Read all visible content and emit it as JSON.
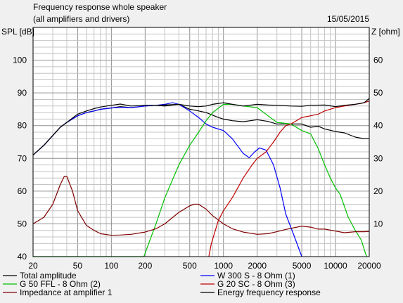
{
  "chart_data": {
    "type": "line",
    "title": "Frequency response whole speaker",
    "subtitle": "(all amplifiers and drivers)",
    "date": "15/05/2015",
    "ylabel_left": "SPL [dB]",
    "ylabel_right": "Z [ohm]",
    "x_scale": "log",
    "xlim": [
      20,
      20000
    ],
    "ylim_left": [
      40,
      110
    ],
    "ylim_right": [
      0,
      70
    ],
    "x_ticks": [
      20,
      50,
      100,
      200,
      500,
      1000,
      2000,
      5000,
      10000,
      20000
    ],
    "x_tick_labels": [
      "20",
      "50",
      "100",
      "200",
      "500",
      "1000",
      "2000",
      "5000",
      "10000",
      "20000"
    ],
    "y_ticks_left": [
      40,
      50,
      60,
      70,
      80,
      90,
      100
    ],
    "y_ticks_right": [
      10,
      20,
      30,
      40,
      50,
      60
    ],
    "grid": true,
    "legend_position": "bottom",
    "series": [
      {
        "name": "Total amplitude",
        "color": "#000000",
        "axis": "left",
        "points": [
          [
            20,
            71
          ],
          [
            25,
            74
          ],
          [
            30,
            77
          ],
          [
            35,
            79.5
          ],
          [
            40,
            81
          ],
          [
            50,
            83
          ],
          [
            60,
            84
          ],
          [
            70,
            84.5
          ],
          [
            80,
            85
          ],
          [
            100,
            85.4
          ],
          [
            120,
            85.8
          ],
          [
            150,
            85.5
          ],
          [
            200,
            86
          ],
          [
            250,
            86.2
          ],
          [
            300,
            86
          ],
          [
            350,
            86.3
          ],
          [
            400,
            86.5
          ],
          [
            500,
            85
          ],
          [
            600,
            84.5
          ],
          [
            700,
            84
          ],
          [
            800,
            83.2
          ],
          [
            900,
            82.5
          ],
          [
            1000,
            82
          ],
          [
            1200,
            81.5
          ],
          [
            1500,
            81.2
          ],
          [
            2000,
            81.8
          ],
          [
            2500,
            81.3
          ],
          [
            3000,
            80.5
          ],
          [
            4000,
            80.5
          ],
          [
            5000,
            80.5
          ],
          [
            6000,
            79.5
          ],
          [
            7000,
            79.8
          ],
          [
            8000,
            79
          ],
          [
            10000,
            78.2
          ],
          [
            12000,
            77.8
          ],
          [
            15000,
            76.5
          ],
          [
            18000,
            76
          ],
          [
            20000,
            76
          ]
        ]
      },
      {
        "name": "W 300 S - 8 Ohm (1)",
        "color": "#0000ff",
        "axis": "left",
        "points": [
          [
            20,
            71
          ],
          [
            25,
            74
          ],
          [
            30,
            77
          ],
          [
            35,
            79.5
          ],
          [
            40,
            81
          ],
          [
            50,
            83
          ],
          [
            60,
            84
          ],
          [
            70,
            84.5
          ],
          [
            80,
            85
          ],
          [
            100,
            85.4
          ],
          [
            120,
            85.6
          ],
          [
            150,
            85.5
          ],
          [
            200,
            86
          ],
          [
            250,
            86.2
          ],
          [
            300,
            86.5
          ],
          [
            350,
            87
          ],
          [
            400,
            86.5
          ],
          [
            500,
            84.5
          ],
          [
            600,
            82.5
          ],
          [
            700,
            80.5
          ],
          [
            800,
            79.5
          ],
          [
            1000,
            78.5
          ],
          [
            1200,
            76
          ],
          [
            1500,
            71.5
          ],
          [
            1700,
            70.2
          ],
          [
            1900,
            72
          ],
          [
            2100,
            73.2
          ],
          [
            2400,
            72.5
          ],
          [
            2800,
            68
          ],
          [
            3200,
            61
          ],
          [
            3600,
            53
          ],
          [
            4200,
            47
          ],
          [
            5000,
            40
          ]
        ]
      },
      {
        "name": "G 50 FFL - 8 Ohm (2)",
        "color": "#00c000",
        "axis": "left",
        "points": [
          [
            20,
            40
          ],
          [
            100,
            40
          ],
          [
            150,
            40
          ],
          [
            195,
            40
          ],
          [
            210,
            43
          ],
          [
            250,
            50
          ],
          [
            300,
            58
          ],
          [
            400,
            68
          ],
          [
            500,
            74
          ],
          [
            600,
            78
          ],
          [
            700,
            81.5
          ],
          [
            800,
            84
          ],
          [
            1000,
            86.5
          ],
          [
            1200,
            86.5
          ],
          [
            1500,
            86
          ],
          [
            2000,
            85.5
          ],
          [
            2500,
            83
          ],
          [
            3000,
            81
          ],
          [
            4000,
            80.5
          ],
          [
            5000,
            78.5
          ],
          [
            6000,
            77.5
          ],
          [
            7000,
            73
          ],
          [
            8000,
            68
          ],
          [
            9000,
            64
          ],
          [
            10000,
            61
          ],
          [
            11000,
            59
          ],
          [
            13000,
            52
          ],
          [
            15000,
            48
          ],
          [
            17000,
            45
          ],
          [
            18500,
            41
          ],
          [
            19000,
            40
          ]
        ]
      },
      {
        "name": "G 20 SC - 8 Ohm (3)",
        "color": "#c00000",
        "axis": "left",
        "points": [
          [
            740,
            40
          ],
          [
            780,
            44
          ],
          [
            900,
            51
          ],
          [
            1000,
            54
          ],
          [
            1200,
            58
          ],
          [
            1500,
            64
          ],
          [
            1800,
            68
          ],
          [
            2000,
            70
          ],
          [
            2400,
            72
          ],
          [
            2800,
            75
          ],
          [
            3200,
            78
          ],
          [
            3600,
            80
          ],
          [
            4000,
            80.5
          ],
          [
            5000,
            82.5
          ],
          [
            6000,
            83
          ],
          [
            7000,
            83.5
          ],
          [
            8000,
            84.5
          ],
          [
            10000,
            85.5
          ],
          [
            12000,
            86
          ],
          [
            15000,
            86.5
          ],
          [
            18000,
            87
          ],
          [
            20000,
            87.5
          ]
        ]
      },
      {
        "name": "Impedance at amplifier 1",
        "color": "#800000",
        "axis": "right",
        "points": [
          [
            20,
            10
          ],
          [
            25,
            12
          ],
          [
            30,
            16
          ],
          [
            35,
            22
          ],
          [
            38,
            24.5
          ],
          [
            40,
            24.5
          ],
          [
            45,
            20
          ],
          [
            50,
            14
          ],
          [
            60,
            9.5
          ],
          [
            70,
            8
          ],
          [
            80,
            7
          ],
          [
            100,
            6.5
          ],
          [
            120,
            6.6
          ],
          [
            150,
            6.8
          ],
          [
            200,
            7.5
          ],
          [
            250,
            8.5
          ],
          [
            300,
            10
          ],
          [
            400,
            13.5
          ],
          [
            500,
            15.5
          ],
          [
            550,
            16
          ],
          [
            600,
            16
          ],
          [
            700,
            14.5
          ],
          [
            800,
            12.5
          ],
          [
            1000,
            10
          ],
          [
            1200,
            8.5
          ],
          [
            1500,
            7.5
          ],
          [
            2000,
            6.8
          ],
          [
            2500,
            7
          ],
          [
            3000,
            7.6
          ],
          [
            3500,
            8.2
          ],
          [
            4000,
            8.6
          ],
          [
            5000,
            9.3
          ],
          [
            6000,
            9
          ],
          [
            7000,
            8.4
          ],
          [
            8000,
            8.4
          ],
          [
            10000,
            7.8
          ],
          [
            12000,
            7.3
          ],
          [
            15000,
            7.6
          ],
          [
            18000,
            7.6
          ],
          [
            20000,
            7.7
          ]
        ]
      },
      {
        "name": "Energy frequency response",
        "color": "#000000",
        "axis": "left",
        "points": [
          [
            20,
            71
          ],
          [
            25,
            74
          ],
          [
            30,
            77
          ],
          [
            35,
            79.5
          ],
          [
            40,
            81
          ],
          [
            50,
            83.5
          ],
          [
            60,
            84.5
          ],
          [
            70,
            85.2
          ],
          [
            80,
            85.7
          ],
          [
            100,
            86.2
          ],
          [
            120,
            86.6
          ],
          [
            150,
            86
          ],
          [
            200,
            86.2
          ],
          [
            250,
            86.2
          ],
          [
            300,
            86.3
          ],
          [
            400,
            86.5
          ],
          [
            500,
            86
          ],
          [
            600,
            85.8
          ],
          [
            700,
            86
          ],
          [
            800,
            86.5
          ],
          [
            1000,
            87
          ],
          [
            1200,
            86.5
          ],
          [
            1500,
            86
          ],
          [
            2000,
            86.5
          ],
          [
            2500,
            86.3
          ],
          [
            3000,
            86.2
          ],
          [
            4000,
            86
          ],
          [
            5000,
            85.9
          ],
          [
            6000,
            86.2
          ],
          [
            8000,
            86.3
          ],
          [
            10000,
            85.8
          ],
          [
            12000,
            86.2
          ],
          [
            15000,
            86.5
          ],
          [
            18000,
            87
          ],
          [
            20000,
            88.3
          ]
        ]
      }
    ]
  }
}
